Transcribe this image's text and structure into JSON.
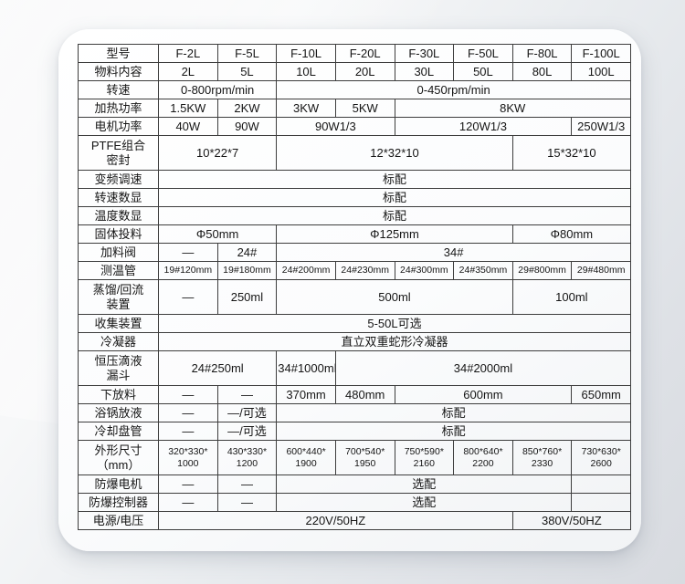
{
  "table": {
    "rows": [
      {
        "label": "型号",
        "cells": [
          {
            "t": "F-2L",
            "c": 1
          },
          {
            "t": "F-5L",
            "c": 1
          },
          {
            "t": "F-10L",
            "c": 1
          },
          {
            "t": "F-20L",
            "c": 1
          },
          {
            "t": "F-30L",
            "c": 1
          },
          {
            "t": "F-50L",
            "c": 1
          },
          {
            "t": "F-80L",
            "c": 1
          },
          {
            "t": "F-100L",
            "c": 1
          }
        ]
      },
      {
        "label": "物料内容",
        "cells": [
          {
            "t": "2L",
            "c": 1
          },
          {
            "t": "5L",
            "c": 1
          },
          {
            "t": "10L",
            "c": 1
          },
          {
            "t": "20L",
            "c": 1
          },
          {
            "t": "30L",
            "c": 1
          },
          {
            "t": "50L",
            "c": 1
          },
          {
            "t": "80L",
            "c": 1
          },
          {
            "t": "100L",
            "c": 1
          }
        ]
      },
      {
        "label": "转速",
        "cells": [
          {
            "t": "0-800rpm/min",
            "c": 2
          },
          {
            "t": "0-450rpm/min",
            "c": 6
          }
        ]
      },
      {
        "label": "加热功率",
        "cells": [
          {
            "t": "1.5KW",
            "c": 1
          },
          {
            "t": "2KW",
            "c": 1
          },
          {
            "t": "3KW",
            "c": 1
          },
          {
            "t": "5KW",
            "c": 1
          },
          {
            "t": "8KW",
            "c": 4
          }
        ]
      },
      {
        "label": "电机功率",
        "cells": [
          {
            "t": "40W",
            "c": 1
          },
          {
            "t": "90W",
            "c": 1
          },
          {
            "t": "90W1/3",
            "c": 2
          },
          {
            "t": "120W1/3",
            "c": 3
          },
          {
            "t": "250W1/3",
            "c": 1
          }
        ]
      },
      {
        "label": "PTFE组合\n密封",
        "cells": [
          {
            "t": "10*22*7",
            "c": 2
          },
          {
            "t": "12*32*10",
            "c": 4
          },
          {
            "t": "15*32*10",
            "c": 2
          }
        ]
      },
      {
        "label": "变频调速",
        "cells": [
          {
            "t": "标配",
            "c": 8
          }
        ]
      },
      {
        "label": "转速数显",
        "cells": [
          {
            "t": "标配",
            "c": 8
          }
        ]
      },
      {
        "label": "温度数显",
        "cells": [
          {
            "t": "标配",
            "c": 8
          }
        ]
      },
      {
        "label": "固体投料",
        "cells": [
          {
            "t": "Φ50mm",
            "c": 2
          },
          {
            "t": "Φ125mm",
            "c": 4
          },
          {
            "t": "Φ80mm",
            "c": 2
          }
        ]
      },
      {
        "label": "加料阀",
        "cells": [
          {
            "t": "—",
            "c": 1
          },
          {
            "t": "24#",
            "c": 1
          },
          {
            "t": "34#",
            "c": 6
          }
        ]
      },
      {
        "label": "测温管",
        "cells": [
          {
            "t": "19#120mm",
            "c": 1
          },
          {
            "t": "19#180mm",
            "c": 1
          },
          {
            "t": "24#200mm",
            "c": 1
          },
          {
            "t": "24#230mm",
            "c": 1
          },
          {
            "t": "24#300mm",
            "c": 1
          },
          {
            "t": "24#350mm",
            "c": 1
          },
          {
            "t": "29#800mm",
            "c": 1
          },
          {
            "t": "29#480mm",
            "c": 1
          }
        ]
      },
      {
        "label": "蒸馏/回流\n装置",
        "cells": [
          {
            "t": "—",
            "c": 1
          },
          {
            "t": "250ml",
            "c": 1
          },
          {
            "t": "500ml",
            "c": 4
          },
          {
            "t": "100ml",
            "c": 2
          }
        ]
      },
      {
        "label": "收集装置",
        "cells": [
          {
            "t": "5-50L可选",
            "c": 8
          }
        ]
      },
      {
        "label": "冷凝器",
        "cells": [
          {
            "t": "直立双重蛇形冷凝器",
            "c": 8
          }
        ]
      },
      {
        "label": "恒压滴液\n漏斗",
        "cells": [
          {
            "t": "24#250ml",
            "c": 2
          },
          {
            "t": "34#1000ml",
            "c": 1
          },
          {
            "t": "34#2000ml",
            "c": 5
          }
        ]
      },
      {
        "label": "下放料",
        "cells": [
          {
            "t": "—",
            "c": 1
          },
          {
            "t": "—",
            "c": 1
          },
          {
            "t": "370mm",
            "c": 1
          },
          {
            "t": "480mm",
            "c": 1
          },
          {
            "t": "600mm",
            "c": 3
          },
          {
            "t": "650mm",
            "c": 1
          }
        ]
      },
      {
        "label": "浴锅放液",
        "cells": [
          {
            "t": "—",
            "c": 1
          },
          {
            "t": "—/可选",
            "c": 1
          },
          {
            "t": "标配",
            "c": 6
          }
        ]
      },
      {
        "label": "冷却盘管",
        "cells": [
          {
            "t": "—",
            "c": 1
          },
          {
            "t": "—/可选",
            "c": 1
          },
          {
            "t": "标配",
            "c": 6
          }
        ]
      },
      {
        "label": "外形尺寸\n（mm）",
        "cells": [
          {
            "t": "320*330*\n1000",
            "c": 1
          },
          {
            "t": "430*330*\n1200",
            "c": 1
          },
          {
            "t": "600*440*\n1900",
            "c": 1
          },
          {
            "t": "700*540*\n1950",
            "c": 1
          },
          {
            "t": "750*590*\n2160",
            "c": 1
          },
          {
            "t": "800*640*\n2200",
            "c": 1
          },
          {
            "t": "850*760*\n2330",
            "c": 1
          },
          {
            "t": "730*630*\n2600",
            "c": 1
          }
        ]
      },
      {
        "label": "防爆电机",
        "cells": [
          {
            "t": "—",
            "c": 1
          },
          {
            "t": "—",
            "c": 1
          },
          {
            "t": "选配",
            "c": 5
          },
          {
            "t": "",
            "c": 1
          }
        ]
      },
      {
        "label": "防爆控制器",
        "cells": [
          {
            "t": "—",
            "c": 1
          },
          {
            "t": "—",
            "c": 1
          },
          {
            "t": "选配",
            "c": 5
          },
          {
            "t": "",
            "c": 1
          }
        ]
      },
      {
        "label": "电源/电压",
        "cells": [
          {
            "t": "220V/50HZ",
            "c": 6
          },
          {
            "t": "380V/50HZ",
            "c": 2
          }
        ]
      }
    ]
  }
}
